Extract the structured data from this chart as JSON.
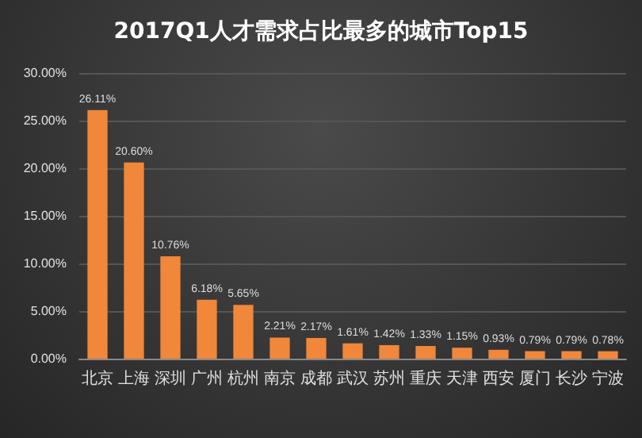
{
  "chart_data": {
    "type": "bar",
    "title": "2017Q1人才需求占比最多的城市Top15",
    "categories": [
      "北京",
      "上海",
      "深圳",
      "广州",
      "杭州",
      "南京",
      "成都",
      "武汉",
      "苏州",
      "重庆",
      "天津",
      "西安",
      "厦门",
      "长沙",
      "宁波"
    ],
    "values": [
      26.11,
      20.6,
      10.76,
      6.18,
      5.65,
      2.21,
      2.17,
      1.61,
      1.42,
      1.33,
      1.15,
      0.93,
      0.79,
      0.79,
      0.78
    ],
    "value_labels": [
      "26.11%",
      "20.60%",
      "10.76%",
      "6.18%",
      "5.65%",
      "2.21%",
      "2.17%",
      "1.61%",
      "1.42%",
      "1.33%",
      "1.15%",
      "0.93%",
      "0.79%",
      "0.79%",
      "0.78%"
    ],
    "color": "#f0873a",
    "ylim": [
      0,
      30
    ],
    "yticks": [
      {
        "value": 0,
        "label": "0.00%"
      },
      {
        "value": 5,
        "label": "5.00%"
      },
      {
        "value": 10,
        "label": "10.00%"
      },
      {
        "value": 15,
        "label": "15.00%"
      },
      {
        "value": 20,
        "label": "20.00%"
      },
      {
        "value": 25,
        "label": "25.00%"
      },
      {
        "value": 30,
        "label": "30.00%"
      }
    ],
    "grid": "y"
  }
}
